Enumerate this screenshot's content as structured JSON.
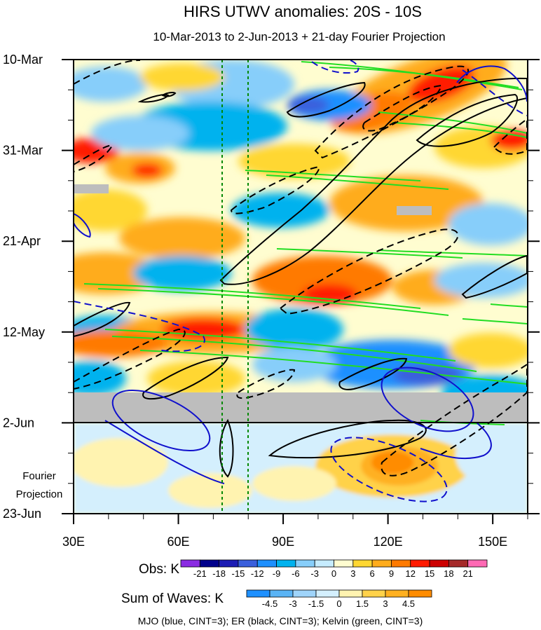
{
  "chart_data": {
    "type": "heatmap",
    "title": "HIRS UTWV anomalies: 20S - 10S",
    "subtitle": "10-Mar-2013 to 2-Jun-2013 + 21-day Fourier Projection",
    "x_axis": {
      "ticks": [
        "30E",
        "60E",
        "90E",
        "120E",
        "150E"
      ],
      "tick_values": [
        30,
        60,
        90,
        120,
        150
      ],
      "range": [
        30,
        160
      ]
    },
    "y_axis": {
      "ticks": [
        "10-Mar",
        "31-Mar",
        "21-Apr",
        "12-May",
        "2-Jun",
        "23-Jun"
      ],
      "tick_values": [
        0,
        21,
        42,
        63,
        84,
        105
      ],
      "range": [
        0,
        105
      ]
    },
    "projection_label": [
      "Fourier",
      "Projection"
    ],
    "reference_longitudes": [
      72.5,
      80
    ],
    "missing_data_band_days": [
      77,
      84
    ],
    "legend_obs": {
      "label": "Obs: K",
      "levels": [
        "-21",
        "-18",
        "-15",
        "-12",
        "-9",
        "-6",
        "-3",
        "0",
        "3",
        "6",
        "9",
        "12",
        "15",
        "18",
        "21"
      ],
      "colors": [
        "#8a2be2",
        "#00008b",
        "#1c1cb4",
        "#3a5fdc",
        "#1e90ff",
        "#00b2ee",
        "#87cefa",
        "#c6ecff",
        "#fffdd0",
        "#ffd732",
        "#ffac1c",
        "#ff7a00",
        "#ff1a00",
        "#cc0000",
        "#a52a2a",
        "#ff69b4"
      ]
    },
    "legend_waves": {
      "label": "Sum of Waves: K",
      "levels": [
        "-4.5",
        "-3",
        "-1.5",
        "0",
        "1.5",
        "3",
        "4.5"
      ],
      "colors": [
        "#1e90ff",
        "#5ab4f5",
        "#9fd4fa",
        "#d4effd",
        "#fff3b0",
        "#ffd24a",
        "#ffb020",
        "#ff8c00"
      ]
    },
    "footnote": "MJO (blue, CINT=3); ER (black, CINT=3); Kelvin (green, CINT=3)",
    "series": [
      {
        "name": "MJO",
        "color": "#0000cc",
        "cint": 3
      },
      {
        "name": "ER",
        "color": "#000000",
        "cint": 3
      },
      {
        "name": "Kelvin",
        "color": "#22dd22",
        "cint": 3
      }
    ]
  }
}
